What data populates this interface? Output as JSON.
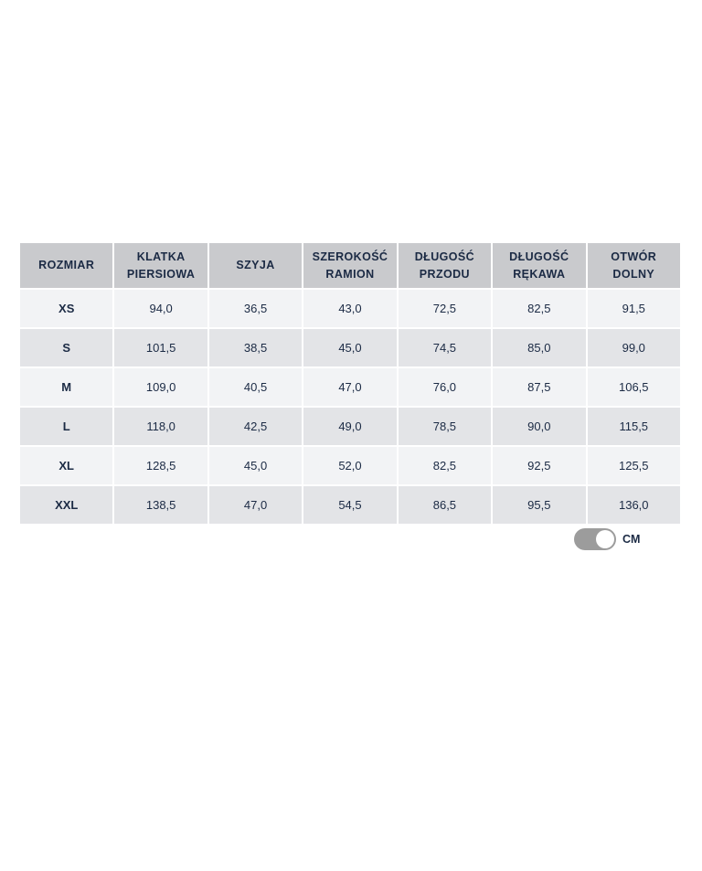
{
  "table": {
    "headers": [
      [
        "ROZMIAR",
        ""
      ],
      [
        "KLATKA",
        "PIERSIOWA"
      ],
      [
        "SZYJA",
        ""
      ],
      [
        "SZEROKOŚĆ",
        "RAMION"
      ],
      [
        "DŁUGOŚĆ",
        "PRZODU"
      ],
      [
        "DŁUGOŚĆ",
        "RĘKAWA"
      ],
      [
        "OTWÓR",
        "DOLNY"
      ]
    ],
    "rows": [
      [
        "XS",
        "94,0",
        "36,5",
        "43,0",
        "72,5",
        "82,5",
        "91,5"
      ],
      [
        "S",
        "101,5",
        "38,5",
        "45,0",
        "74,5",
        "85,0",
        "99,0"
      ],
      [
        "M",
        "109,0",
        "40,5",
        "47,0",
        "76,0",
        "87,5",
        "106,5"
      ],
      [
        "L",
        "118,0",
        "42,5",
        "49,0",
        "78,5",
        "90,0",
        "115,5"
      ],
      [
        "XL",
        "128,5",
        "45,0",
        "52,0",
        "82,5",
        "92,5",
        "125,5"
      ],
      [
        "XXL",
        "138,5",
        "47,0",
        "54,5",
        "86,5",
        "95,5",
        "136,0"
      ]
    ]
  },
  "unit_toggle": {
    "label": "CM",
    "on": true,
    "track_color": "#9c9c9c"
  },
  "colors": {
    "header_bg": "#c9cacd",
    "row_light": "#f2f3f5",
    "row_dark": "#e3e4e7",
    "text": "#1b2a44"
  }
}
